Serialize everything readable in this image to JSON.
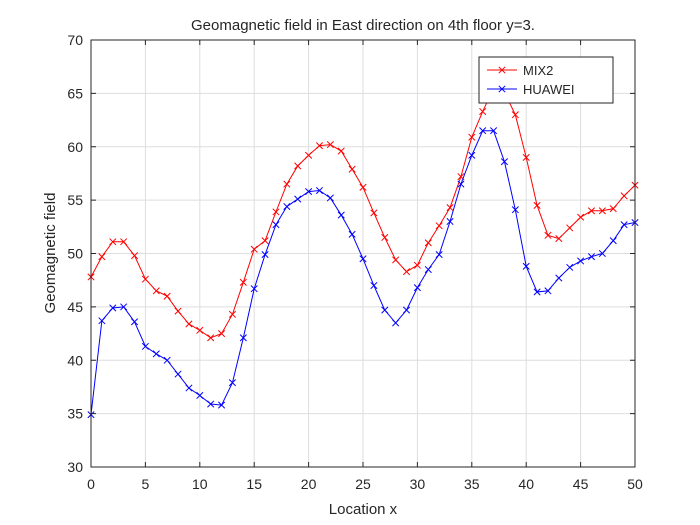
{
  "chart_data": {
    "type": "line",
    "title": "Geomagnetic field in East direction on 4th floor y=3.",
    "xlabel": "Location x",
    "ylabel": "Geomagnetic field",
    "xlim": [
      0,
      50
    ],
    "ylim": [
      30,
      70
    ],
    "xticks": [
      0,
      5,
      10,
      15,
      20,
      25,
      30,
      35,
      40,
      45,
      50
    ],
    "yticks": [
      30,
      35,
      40,
      45,
      50,
      55,
      60,
      65,
      70
    ],
    "grid": true,
    "legend_position": "top-right",
    "marker": "x",
    "x": [
      0,
      1,
      2,
      3,
      4,
      5,
      6,
      7,
      8,
      9,
      10,
      11,
      12,
      13,
      14,
      15,
      16,
      17,
      18,
      19,
      20,
      21,
      22,
      23,
      24,
      25,
      26,
      27,
      28,
      29,
      30,
      31,
      32,
      33,
      34,
      35,
      36,
      37,
      38,
      39,
      40,
      41,
      42,
      43,
      44,
      45,
      46,
      47,
      48,
      49,
      50
    ],
    "series": [
      {
        "name": "MIX2",
        "color": "#ff0000",
        "values": [
          47.8,
          49.7,
          51.1,
          51.1,
          49.8,
          47.6,
          46.5,
          46.0,
          44.6,
          43.4,
          42.8,
          42.1,
          42.5,
          44.3,
          47.3,
          50.4,
          51.2,
          53.9,
          56.5,
          58.2,
          59.2,
          60.1,
          60.2,
          59.6,
          57.9,
          56.2,
          53.8,
          51.5,
          49.4,
          48.3,
          48.9,
          51.0,
          52.6,
          54.3,
          57.2,
          60.9,
          63.3,
          65.5,
          65.1,
          63.0,
          59.0,
          54.5,
          51.7,
          51.4,
          52.4,
          53.4,
          54.0,
          54.0,
          54.2,
          55.4,
          56.4
        ]
      },
      {
        "name": "HUAWEI",
        "color": "#0000ff",
        "values": [
          34.9,
          43.7,
          44.9,
          45.0,
          43.6,
          41.3,
          40.6,
          40.0,
          38.7,
          37.4,
          36.7,
          35.9,
          35.8,
          37.9,
          42.1,
          46.7,
          49.9,
          52.7,
          54.4,
          55.1,
          55.8,
          55.9,
          55.2,
          53.6,
          51.8,
          49.5,
          47.0,
          44.7,
          43.5,
          44.7,
          46.8,
          48.5,
          49.9,
          53.0,
          56.5,
          59.2,
          61.5,
          61.5,
          58.6,
          54.1,
          48.8,
          46.4,
          46.5,
          47.7,
          48.7,
          49.3,
          49.7,
          50.0,
          51.2,
          52.7,
          52.9
        ]
      }
    ]
  }
}
